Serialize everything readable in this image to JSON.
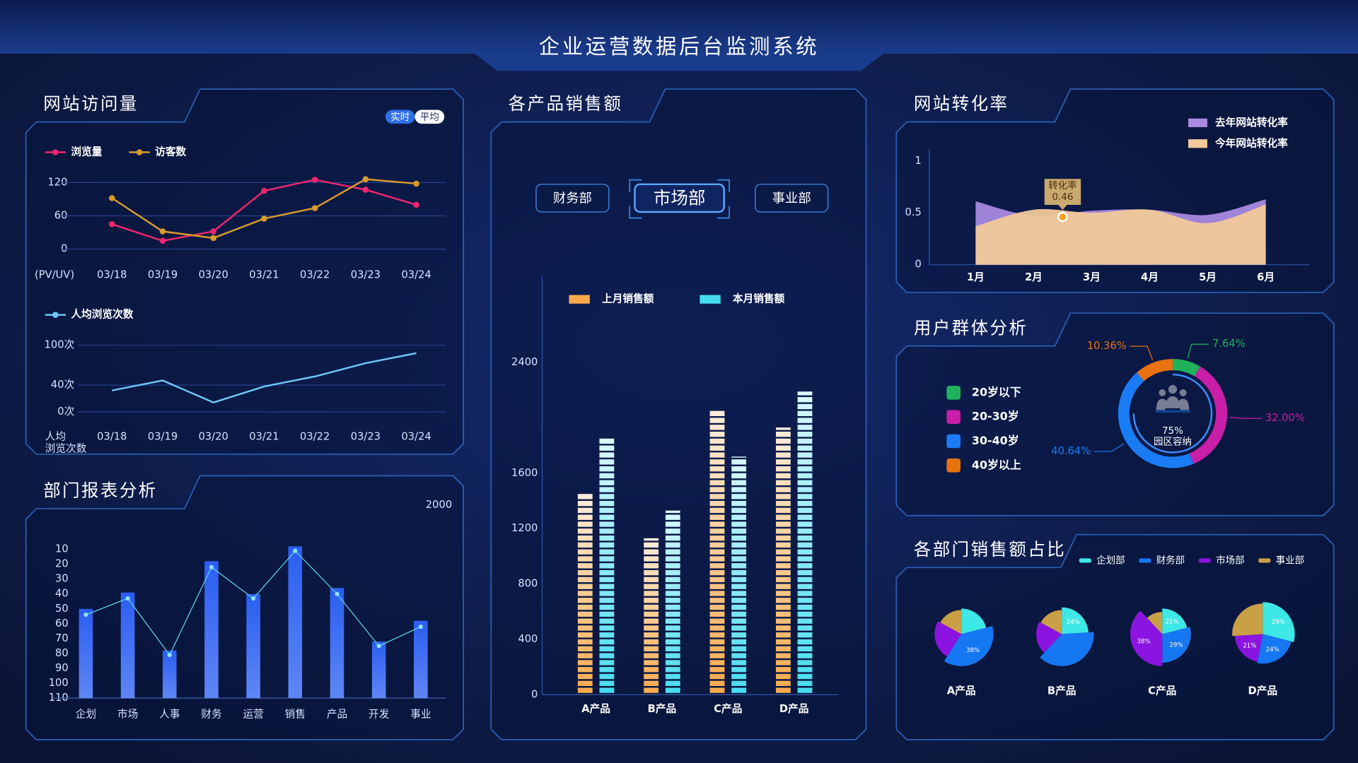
{
  "title": "企业运营数据后台监测系统",
  "chart_data": [
    {
      "type": "line",
      "title": "网站访问量",
      "toggle": [
        "实时",
        "平均"
      ],
      "y_label": "(PV/UV)",
      "categories": [
        "03/18",
        "03/19",
        "03/20",
        "03/21",
        "03/22",
        "03/23",
        "03/24"
      ],
      "series": [
        {
          "name": "浏览量",
          "color": "#f0266e",
          "values": [
            45,
            15,
            32,
            105,
            125,
            107,
            80
          ]
        },
        {
          "name": "访客数",
          "color": "#d89b2b",
          "values": [
            92,
            32,
            20,
            55,
            74,
            126,
            118
          ]
        }
      ],
      "ylim": [
        0,
        120
      ],
      "yticks": [
        0,
        60,
        120
      ],
      "grid": true,
      "markers": true
    },
    {
      "type": "line",
      "y_label": [
        "人均",
        "浏览次数"
      ],
      "categories": [
        "03/18",
        "03/19",
        "03/20",
        "03/21",
        "03/22",
        "03/23",
        "03/24"
      ],
      "series": [
        {
          "name": "人均浏览次数",
          "color": "#6ec6f7",
          "values": [
            32,
            47,
            14,
            38,
            53,
            73,
            88
          ]
        }
      ],
      "ylim": [
        0,
        100
      ],
      "yticks": [
        {
          "value": 0,
          "label": "0次"
        },
        {
          "value": 40,
          "label": "40次"
        },
        {
          "value": 100,
          "label": "100次"
        }
      ],
      "grid": true,
      "markers": false
    },
    {
      "type": "bar_line",
      "title": "部门报表分析",
      "categories": [
        "企划",
        "市场",
        "人事",
        "财务",
        "运营",
        "销售",
        "产品",
        "开发",
        "事业"
      ],
      "series": [
        {
          "type": "bar",
          "color": "#2a5ef2",
          "values": [
            50,
            39,
            78,
            18,
            40,
            8,
            36,
            72,
            58
          ]
        },
        {
          "type": "line",
          "color": "#5fd8ee",
          "values": [
            54,
            43,
            81,
            22,
            43,
            11,
            40,
            75,
            62
          ]
        }
      ],
      "ylim": [
        110,
        10
      ],
      "yticks": [
        10,
        20,
        30,
        40,
        50,
        60,
        70,
        80,
        90,
        100,
        110
      ],
      "y2ticks": [
        2000
      ]
    },
    {
      "type": "bar",
      "title": "各产品销售额",
      "tabs": [
        "财务部",
        "市场部",
        "事业部"
      ],
      "active_tab": 1,
      "categories": [
        "A产品",
        "B产品",
        "C产品",
        "D产品"
      ],
      "series": [
        {
          "name": "上月销售额",
          "color": "#f9a94b",
          "values": [
            1460,
            1130,
            2060,
            1930
          ]
        },
        {
          "name": "本月销售额",
          "color": "#45dcef",
          "values": [
            1860,
            1330,
            1720,
            2190
          ]
        }
      ],
      "ylim": [
        0,
        3000
      ],
      "yticks": [
        0,
        400,
        800,
        1200,
        1600,
        2400
      ]
    },
    {
      "type": "area",
      "title": "网站转化率",
      "categories": [
        "1月",
        "2月",
        "3月",
        "4月",
        "5月",
        "6月"
      ],
      "series": [
        {
          "name": "去年网站转化率",
          "color": "#a98ae0",
          "values": [
            0.61,
            0.47,
            0.52,
            0.53,
            0.48,
            0.63
          ]
        },
        {
          "name": "今年网站转化率",
          "color": "#f2c99a",
          "values": [
            0.37,
            0.53,
            0.5,
            0.53,
            0.4,
            0.58
          ]
        }
      ],
      "ylim": [
        0,
        1
      ],
      "yticks": [
        0,
        0.5,
        1
      ],
      "annotation": {
        "label": "转化率",
        "value": 0.46
      }
    },
    {
      "type": "donut",
      "title": "用户群体分析",
      "categories": [
        "20岁以下",
        "20-30岁",
        "30-40岁",
        "40岁以上"
      ],
      "colors": [
        "#1fb25a",
        "#c81ea8",
        "#1a7cf5",
        "#e8720f"
      ],
      "values": [
        7.64,
        32,
        40.64,
        10.36
      ],
      "value_labels": [
        "7.64%",
        "32.00%",
        "40.64%",
        "10.36%"
      ],
      "center": {
        "value": 75,
        "value_label": "75%",
        "label": "园区容纳"
      }
    },
    {
      "type": "multi_pie",
      "title": "各部门销售额占比",
      "categories": [
        "A产品",
        "B产品",
        "C产品",
        "D产品"
      ],
      "series": [
        {
          "name": "企划部",
          "color": "#3de8e6",
          "values": [
            21,
            24,
            21,
            29
          ],
          "value_labels": [
            null,
            "24%",
            "21%",
            "29%"
          ]
        },
        {
          "name": "财务部",
          "color": "#1677f2",
          "values": [
            38,
            38,
            29,
            24
          ],
          "value_labels": [
            "38%",
            null,
            "29%",
            "24%"
          ]
        },
        {
          "name": "市场部",
          "color": "#8b14e0",
          "values": [
            24,
            21,
            38,
            21
          ],
          "value_labels": [
            null,
            null,
            "38%",
            "21%"
          ]
        },
        {
          "name": "事业部",
          "color": "#c9a045",
          "values": [
            17,
            17,
            12,
            26
          ],
          "value_labels": [
            null,
            null,
            null,
            null
          ]
        }
      ]
    }
  ]
}
